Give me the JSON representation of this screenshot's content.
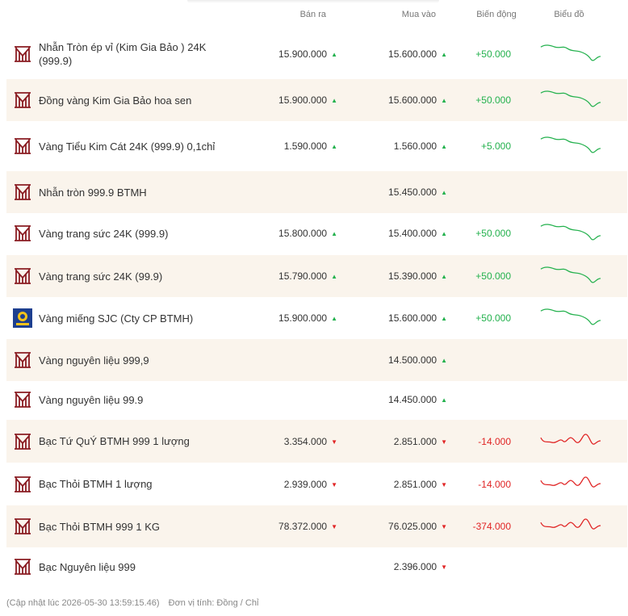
{
  "header": {
    "sell": "Bán ra",
    "buy": "Mua vào",
    "change": "Biến động",
    "chart": "Biểu đồ"
  },
  "colors": {
    "up": "#23b14d",
    "down": "#e02424",
    "alt_row": "#faf4ec",
    "brand": "#8a1c22"
  },
  "rows": [
    {
      "name": "Nhẫn Tròn ép vỉ (Kim Gia Bảo ) 24K (999.9)",
      "logo": "btmh-logo",
      "sell": "15.900.000",
      "sell_dir": "up",
      "buy": "15.600.000",
      "buy_dir": "up",
      "change": "+50.000",
      "change_dir": "up",
      "spark": "up"
    },
    {
      "name": "Đồng vàng Kim Gia Bảo hoa sen",
      "logo": "btmh-logo",
      "sell": "15.900.000",
      "sell_dir": "up",
      "buy": "15.600.000",
      "buy_dir": "up",
      "change": "+50.000",
      "change_dir": "up",
      "spark": "up"
    },
    {
      "name": "Vàng Tiểu Kim Cát 24K (999.9) 0,1chỉ",
      "logo": "btmh-logo",
      "sell": "1.590.000",
      "sell_dir": "up",
      "buy": "1.560.000",
      "buy_dir": "up",
      "change": "+5.000",
      "change_dir": "up",
      "spark": "up"
    },
    {
      "name": "Nhẫn tròn 999.9 BTMH",
      "logo": "btmh-logo",
      "sell": "",
      "sell_dir": "",
      "buy": "15.450.000",
      "buy_dir": "up",
      "change": "",
      "change_dir": "",
      "spark": ""
    },
    {
      "name": "Vàng trang sức 24K (999.9)",
      "logo": "btmh-logo",
      "sell": "15.800.000",
      "sell_dir": "up",
      "buy": "15.400.000",
      "buy_dir": "up",
      "change": "+50.000",
      "change_dir": "up",
      "spark": "up"
    },
    {
      "name": "Vàng trang sức 24K (99.9)",
      "logo": "btmh-logo",
      "sell": "15.790.000",
      "sell_dir": "up",
      "buy": "15.390.000",
      "buy_dir": "up",
      "change": "+50.000",
      "change_dir": "up",
      "spark": "up"
    },
    {
      "name": "Vàng miếng SJC (Cty CP BTMH)",
      "logo": "sjc-logo",
      "sell": "15.900.000",
      "sell_dir": "up",
      "buy": "15.600.000",
      "buy_dir": "up",
      "change": "+50.000",
      "change_dir": "up",
      "spark": "up"
    },
    {
      "name": "Vàng nguyên liệu 999,9",
      "logo": "btmh-logo",
      "sell": "",
      "sell_dir": "",
      "buy": "14.500.000",
      "buy_dir": "up",
      "change": "",
      "change_dir": "",
      "spark": ""
    },
    {
      "name": "Vàng nguyên liệu 99.9",
      "logo": "btmh-logo",
      "sell": "",
      "sell_dir": "",
      "buy": "14.450.000",
      "buy_dir": "up",
      "change": "",
      "change_dir": "",
      "spark": ""
    },
    {
      "name": "Bạc Tứ QuÝ BTMH 999 1 lượng",
      "logo": "btmh-logo",
      "sell": "3.354.000",
      "sell_dir": "down",
      "buy": "2.851.000",
      "buy_dir": "down",
      "change": "-14.000",
      "change_dir": "down",
      "spark": "down"
    },
    {
      "name": "Bạc Thỏi BTMH 1 lượng",
      "logo": "btmh-logo",
      "sell": "2.939.000",
      "sell_dir": "down",
      "buy": "2.851.000",
      "buy_dir": "down",
      "change": "-14.000",
      "change_dir": "down",
      "spark": "down"
    },
    {
      "name": "Bạc Thỏi BTMH 999 1 KG",
      "logo": "btmh-logo",
      "sell": "78.372.000",
      "sell_dir": "down",
      "buy": "76.025.000",
      "buy_dir": "down",
      "change": "-374.000",
      "change_dir": "down",
      "spark": "down"
    },
    {
      "name": "Bạc Nguyên liệu 999",
      "logo": "btmh-logo",
      "sell": "",
      "sell_dir": "",
      "buy": "2.396.000",
      "buy_dir": "down",
      "change": "",
      "change_dir": "",
      "spark": ""
    }
  ],
  "footer": {
    "updated": "(Cập nhật lúc 2026-05-30 13:59:15.46)",
    "unit": "Đơn vị tính: Đồng / Chỉ"
  }
}
